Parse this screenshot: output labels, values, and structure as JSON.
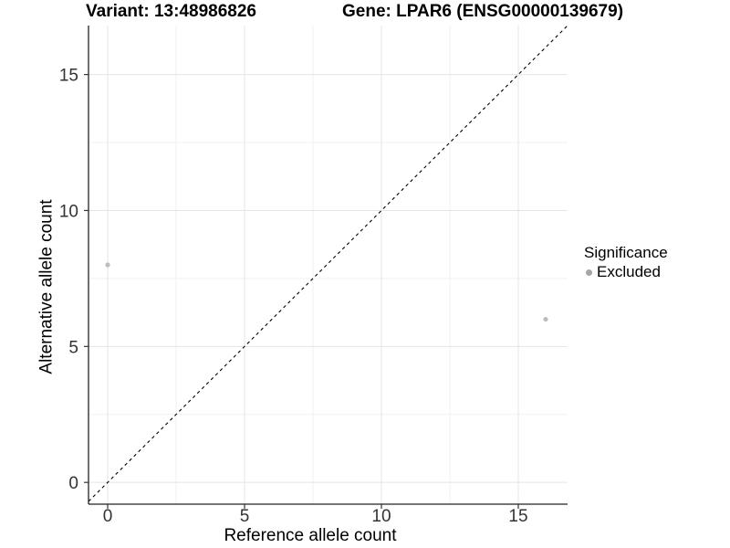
{
  "figure": {
    "titles": {
      "variant": "Variant: 13:48986826",
      "gene": "Gene: LPAR6 (ENSG00000139679)"
    },
    "axes": {
      "x_label": "Reference allele count",
      "y_label": "Alternative allele count"
    },
    "legend": {
      "title": "Significance",
      "items": [
        {
          "label": "Excluded",
          "color": "#a6a6a6"
        }
      ]
    }
  },
  "chart_data": {
    "type": "scatter",
    "title": "Variant: 13:48986826   Gene: LPAR6 (ENSG00000139679)",
    "xlabel": "Reference allele count",
    "ylabel": "Alternative allele count",
    "xlim": [
      -0.7,
      16.8
    ],
    "ylim": [
      -0.8,
      16.8
    ],
    "x_ticks": [
      0,
      5,
      10,
      15
    ],
    "y_ticks": [
      0,
      5,
      10,
      15
    ],
    "x_minor_ticks": [
      2.5,
      7.5,
      12.5
    ],
    "y_minor_ticks": [
      2.5,
      7.5,
      12.5
    ],
    "grid": "major and minor gridlines on white background",
    "legend_position": "right",
    "series": [
      {
        "name": "Excluded",
        "color": "#bdbdbd",
        "marker": "circle",
        "points": [
          [
            0,
            8
          ],
          [
            16,
            6
          ]
        ]
      }
    ],
    "reference_line": {
      "kind": "identity",
      "slope": 1,
      "intercept": 0,
      "linetype": "dashed",
      "color": "#000000"
    }
  },
  "colors": {
    "background": "#ffffff",
    "grid_major": "#e5e5e5",
    "grid_minor": "#f1f1f1",
    "axis_line": "#222222",
    "tick_mark": "#333333",
    "tick_label": "#333333",
    "point": "#bdbdbd",
    "legend_dot": "#a6a6a6"
  }
}
